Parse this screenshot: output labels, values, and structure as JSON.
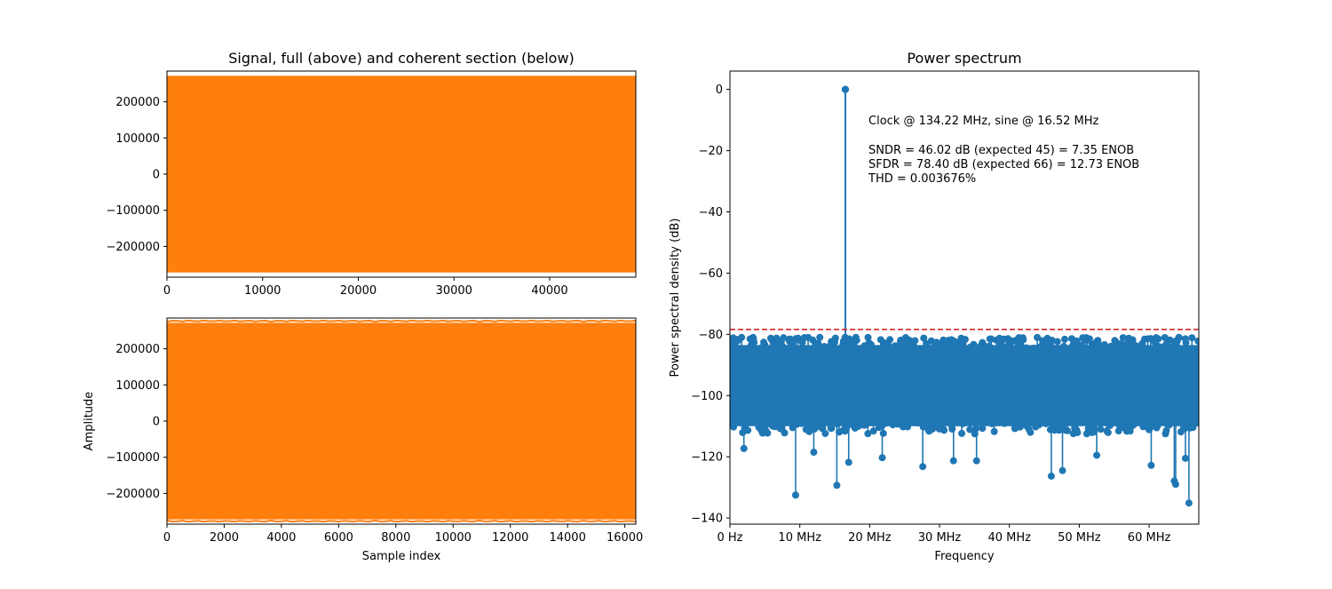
{
  "chart_data": [
    {
      "type": "line",
      "title": "Signal, full (above) and coherent section (below)",
      "xlabel": "",
      "ylabel": "",
      "xlim": [
        0,
        49000
      ],
      "ylim": [
        -285000,
        285000
      ],
      "x_ticks": [
        0,
        10000,
        20000,
        30000,
        40000
      ],
      "x_tick_labels": [
        "0",
        "10000",
        "20000",
        "30000",
        "40000"
      ],
      "y_ticks": [
        200000,
        100000,
        0,
        -100000,
        -200000
      ],
      "y_tick_labels": [
        "200000",
        "100000",
        "0",
        "−100000",
        "−200000"
      ],
      "signal": {
        "amplitude_max": 272000,
        "amplitude_min": -272000,
        "samples": 49000,
        "color": "#ff7f0e",
        "appearance": "dense sine filling the band"
      },
      "grid": false
    },
    {
      "type": "line",
      "title": "",
      "xlabel": "Sample index",
      "ylabel": "Amplitude",
      "xlim": [
        0,
        16384
      ],
      "ylim": [
        -285000,
        285000
      ],
      "x_ticks": [
        0,
        2000,
        4000,
        6000,
        8000,
        10000,
        12000,
        14000,
        16000
      ],
      "x_tick_labels": [
        "0",
        "2000",
        "4000",
        "6000",
        "8000",
        "10000",
        "12000",
        "14000",
        "16000"
      ],
      "y_ticks": [
        200000,
        100000,
        0,
        -100000,
        -200000
      ],
      "y_tick_labels": [
        "200000",
        "100000",
        "0",
        "−100000",
        "−200000"
      ],
      "signal": {
        "amplitude_max": 272000,
        "amplitude_min": -272000,
        "samples": 16384,
        "color": "#ff7f0e",
        "appearance": "dense sine filling the band"
      },
      "grid": false
    },
    {
      "type": "scatter",
      "title": "Power spectrum",
      "xlabel": "Frequency",
      "ylabel": "Power spectral density (dB)",
      "xlim": [
        0,
        67.11
      ],
      "ylim": [
        -142,
        6
      ],
      "x_ticks": [
        0,
        10,
        20,
        30,
        40,
        50,
        60
      ],
      "x_tick_labels": [
        "0 Hz",
        "10 MHz",
        "20 MHz",
        "30 MHz",
        "40 MHz",
        "50 MHz",
        "60 MHz"
      ],
      "y_ticks": [
        0,
        -20,
        -40,
        -60,
        -80,
        -100,
        -120,
        -140
      ],
      "y_tick_labels": [
        "0",
        "−20",
        "−40",
        "−60",
        "−80",
        "−100",
        "−120",
        "−140"
      ],
      "stem_baseline": -100,
      "peak": {
        "x": 16.52,
        "y": 0
      },
      "sfdr_line": {
        "y": -78.4,
        "color": "#d62728",
        "style": "dashed"
      },
      "noise_floor": {
        "top_envelope": -80,
        "bottom_typical": -112,
        "color": "#1f77b4"
      },
      "noise_outliers": [
        {
          "x": 9.4,
          "y": -132.5
        },
        {
          "x": 15.3,
          "y": -129.3
        },
        {
          "x": 46.0,
          "y": -126.3
        },
        {
          "x": 47.6,
          "y": -124.5
        },
        {
          "x": 27.6,
          "y": -123.2
        },
        {
          "x": 60.3,
          "y": -122.8
        },
        {
          "x": 17.0,
          "y": -121.8
        },
        {
          "x": 32.0,
          "y": -121.3
        },
        {
          "x": 35.3,
          "y": -121.3
        },
        {
          "x": 63.6,
          "y": -127.9
        },
        {
          "x": 63.8,
          "y": -129.0
        },
        {
          "x": 65.7,
          "y": -135.1
        },
        {
          "x": 65.2,
          "y": -120.5
        },
        {
          "x": 2.0,
          "y": -117.3
        },
        {
          "x": 21.8,
          "y": -120.3
        },
        {
          "x": 52.5,
          "y": -119.5
        },
        {
          "x": 12.0,
          "y": -118.5
        }
      ],
      "annotation": {
        "line1": "Clock @ 134.22 MHz, sine @ 16.52 MHz",
        "line2": "SNDR = 46.02 dB (expected 45) = 7.35 ENOB",
        "line3": "SFDR = 78.40 dB (expected 66) = 12.73 ENOB",
        "line4": "THD = 0.003676%"
      },
      "grid": false
    }
  ]
}
